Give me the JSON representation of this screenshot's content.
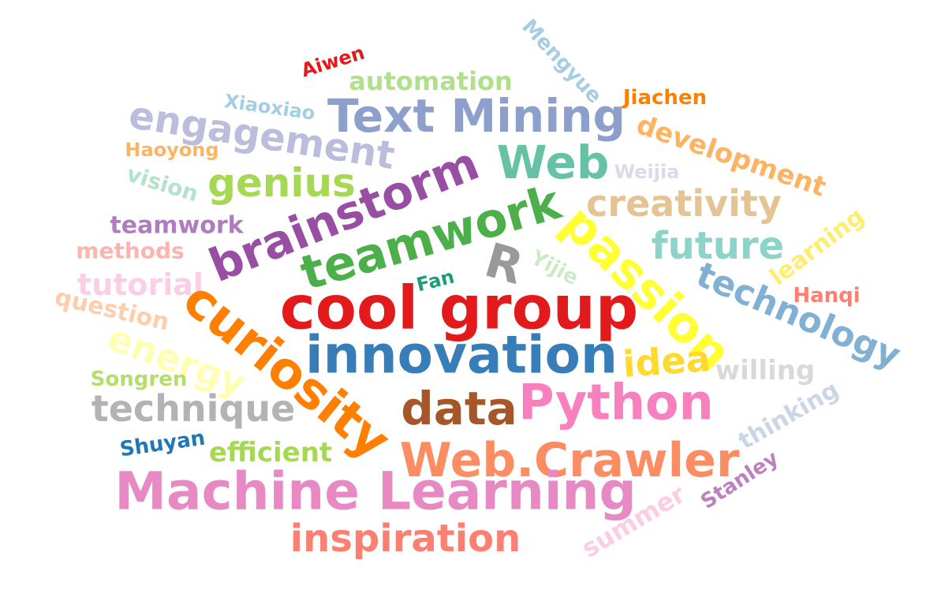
{
  "word_cloud": {
    "words": [
      {
        "text": "Aiwen",
        "color": "#e31a1c"
      },
      {
        "text": "Mengyue",
        "color": "#a6cee3"
      },
      {
        "text": "automation",
        "color": "#b2df8a"
      },
      {
        "text": "Xiaoxiao",
        "color": "#a6cee3"
      },
      {
        "text": "Jiachen",
        "color": "#ff7f00"
      },
      {
        "text": "Text Mining",
        "color": "#8da0cb"
      },
      {
        "text": "engagement",
        "color": "#bcbddc"
      },
      {
        "text": "development",
        "color": "#fdb462"
      },
      {
        "text": "Haoyong",
        "color": "#fdb462"
      },
      {
        "text": "Web",
        "color": "#66c2a5"
      },
      {
        "text": "Weijia",
        "color": "#dadaeb"
      },
      {
        "text": "vision",
        "color": "#b3e2cd"
      },
      {
        "text": "genius",
        "color": "#a6d854"
      },
      {
        "text": "brainstorm",
        "color": "#984ea3"
      },
      {
        "text": "creativity",
        "color": "#e5c494"
      },
      {
        "text": "learning",
        "color": "#ffed6f"
      },
      {
        "text": "teamwork",
        "color": "#4daf4a"
      },
      {
        "text": "teamwork",
        "color": "#b07bc0"
      },
      {
        "text": "methods",
        "color": "#fbb4ae"
      },
      {
        "text": "future",
        "color": "#8dd3c7"
      },
      {
        "text": "passion",
        "color": "#ffff33"
      },
      {
        "text": "R",
        "color": "#999999"
      },
      {
        "text": "Yijie",
        "color": "#ccebc5"
      },
      {
        "text": "Fan",
        "color": "#1b9e77"
      },
      {
        "text": "tutorial",
        "color": "#fccde5"
      },
      {
        "text": "technology",
        "color": "#80b1d3"
      },
      {
        "text": "Hanqi",
        "color": "#fb8072"
      },
      {
        "text": "question",
        "color": "#fdcdac"
      },
      {
        "text": "cool group",
        "color": "#e31a1c"
      },
      {
        "text": "curiosity",
        "color": "#ff7f00"
      },
      {
        "text": "energy",
        "color": "#ffffb3"
      },
      {
        "text": "innovation",
        "color": "#377eb8"
      },
      {
        "text": "idea",
        "color": "#ffd92f"
      },
      {
        "text": "willing",
        "color": "#d9d9d9"
      },
      {
        "text": "Songren",
        "color": "#b3de69"
      },
      {
        "text": "data",
        "color": "#a65628"
      },
      {
        "text": "Python",
        "color": "#f781bf"
      },
      {
        "text": "technique",
        "color": "#b3b3b3"
      },
      {
        "text": "thinking",
        "color": "#cbd5e8"
      },
      {
        "text": "Shuyan",
        "color": "#1f78b4"
      },
      {
        "text": "efficient",
        "color": "#a6d854"
      },
      {
        "text": "Web.Crawler",
        "color": "#fc8d62"
      },
      {
        "text": "Stanley",
        "color": "#bc80bd"
      },
      {
        "text": "Machine Learning",
        "color": "#e78ac3"
      },
      {
        "text": "summer",
        "color": "#fccde5"
      },
      {
        "text": "inspiration",
        "color": "#fb8072"
      }
    ]
  }
}
